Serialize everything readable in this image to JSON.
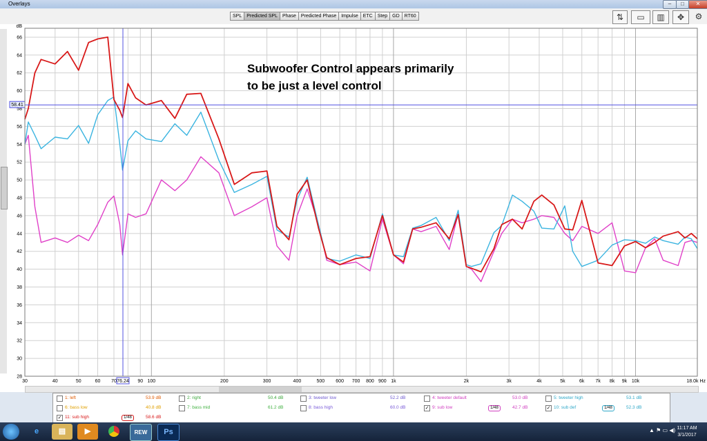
{
  "window": {
    "title": "Overlays"
  },
  "tabs": [
    "SPL",
    "Predicted SPL",
    "Phase",
    "Predicted Phase",
    "Impulse",
    "ETC",
    "Step",
    "GD",
    "RT60"
  ],
  "active_tab": "Predicted SPL",
  "chart_data": {
    "type": "line",
    "title": "",
    "xlabel": "Hz",
    "ylabel": "dB",
    "xscale": "log",
    "xlim": [
      30,
      18000
    ],
    "ylim": [
      28,
      67
    ],
    "y_ticks": [
      28,
      30,
      32,
      34,
      36,
      38,
      40,
      42,
      44,
      46,
      48,
      50,
      52,
      54,
      56,
      58,
      60,
      62,
      64,
      66
    ],
    "x_ticks": [
      "30",
      "40",
      "50",
      "60",
      "70",
      "76.24",
      "90",
      "100",
      "200",
      "300",
      "400",
      "500",
      "600",
      "700",
      "800",
      "900",
      "1k",
      "2k",
      "3k",
      "4k",
      "5k",
      "6k",
      "7k",
      "8k",
      "9k",
      "10k",
      "18.0k Hz"
    ],
    "cursor": {
      "x": 76.24,
      "x_label": "76.24",
      "y": 58.41,
      "y_label": "58.41"
    },
    "annotation": [
      "Subwoofer Control appears primarily",
      "to be just a level control"
    ],
    "series": [
      {
        "name": "9: sub low",
        "color": "#e040c8",
        "x": [
          30,
          31,
          33,
          35,
          40,
          45,
          50,
          55,
          60,
          66,
          70,
          74,
          76,
          80,
          86,
          95,
          110,
          125,
          140,
          160,
          190,
          220,
          260,
          300,
          330,
          370,
          400,
          440,
          490,
          530,
          600,
          700,
          800,
          900,
          1000,
          1100,
          1200,
          1300,
          1500,
          1700,
          1850,
          2000,
          2100,
          2300,
          2600,
          2800,
          3100,
          3400,
          3800,
          4100,
          4600,
          5100,
          5500,
          6000,
          7000,
          8000,
          9000,
          10000,
          11000,
          12000,
          13000,
          15000,
          16000,
          17000,
          18000
        ],
        "y": [
          54,
          55,
          47,
          43,
          43.5,
          43,
          43.8,
          43.2,
          45,
          47.5,
          48.2,
          45,
          41.6,
          46.2,
          45.8,
          46.2,
          50,
          48.8,
          50,
          52.6,
          50.8,
          46,
          47,
          48,
          42.6,
          41,
          46,
          49,
          45,
          41,
          40.5,
          40.8,
          39.8,
          45.6,
          41.6,
          40.6,
          44.5,
          44.2,
          44.8,
          42.2,
          46.2,
          40.3,
          40,
          38.6,
          42,
          44,
          45.6,
          45.2,
          45.6,
          46,
          45.8,
          44,
          43.2,
          44.8,
          44,
          45.2,
          39.8,
          39.6,
          42.4,
          43.4,
          41,
          40.4,
          43,
          43.2,
          43
        ]
      },
      {
        "name": "10: sub def",
        "color": "#3ab4e0",
        "x": [
          30,
          31,
          33,
          35,
          40,
          45,
          50,
          55,
          60,
          66,
          70,
          74,
          76,
          80,
          86,
          95,
          110,
          125,
          140,
          160,
          190,
          220,
          260,
          300,
          330,
          370,
          400,
          440,
          490,
          530,
          600,
          700,
          800,
          900,
          1000,
          1100,
          1200,
          1300,
          1500,
          1700,
          1850,
          2000,
          2100,
          2300,
          2600,
          2800,
          3100,
          3400,
          3800,
          4100,
          4600,
          5100,
          5500,
          6000,
          7000,
          8000,
          9000,
          10000,
          11000,
          12000,
          13000,
          15000,
          16000,
          17000,
          18000
        ],
        "y": [
          54,
          56.5,
          55,
          53.5,
          54.8,
          54.6,
          56.1,
          54.1,
          57.3,
          58.9,
          59.3,
          54,
          51.1,
          54.4,
          55.5,
          54.6,
          54.3,
          56.3,
          55,
          57.6,
          52.2,
          48.6,
          49.5,
          50.4,
          44.4,
          43.6,
          47.8,
          50.3,
          45,
          41.2,
          40.9,
          41.6,
          41.2,
          46.2,
          41.6,
          41.4,
          44.6,
          44.9,
          45.8,
          43.2,
          46.6,
          40.5,
          40.3,
          40.6,
          44.1,
          44.9,
          48.3,
          47.6,
          46.5,
          44.6,
          44.5,
          47.1,
          42,
          40.3,
          41,
          42.7,
          43.3,
          43.2,
          42.9,
          43.6,
          43.2,
          42.8,
          43.6,
          43.4,
          42.3
        ]
      },
      {
        "name": "11: sub high",
        "color": "#d81818",
        "x": [
          30,
          31,
          33,
          35,
          40,
          45,
          50,
          55,
          60,
          66,
          70,
          74,
          76,
          80,
          86,
          95,
          110,
          125,
          140,
          160,
          190,
          220,
          260,
          300,
          330,
          370,
          400,
          440,
          490,
          530,
          600,
          700,
          800,
          900,
          1000,
          1100,
          1200,
          1300,
          1500,
          1700,
          1850,
          2000,
          2100,
          2300,
          2600,
          2800,
          3100,
          3400,
          3800,
          4100,
          4600,
          5100,
          5500,
          6000,
          7000,
          8000,
          9000,
          10000,
          11000,
          12000,
          13000,
          15000,
          16000,
          17000,
          18000
        ],
        "y": [
          56.8,
          58,
          62,
          63.5,
          63,
          64.4,
          62.3,
          65.4,
          65.8,
          66,
          59,
          57.8,
          57,
          60.8,
          59.2,
          58.4,
          58.9,
          56.9,
          59.6,
          59.7,
          54.6,
          49.5,
          50.8,
          51,
          44.8,
          43.3,
          48.4,
          50,
          44.6,
          41.3,
          40.5,
          41.2,
          41.4,
          46,
          41.6,
          40.8,
          44.5,
          44.7,
          45.2,
          43.4,
          46.1,
          40.3,
          40.1,
          39.7,
          42.3,
          45,
          45.6,
          44.5,
          47.6,
          48.3,
          47.2,
          44.5,
          44.4,
          47.7,
          40.7,
          40.4,
          42.6,
          43.1,
          42.4,
          43,
          43.7,
          44.2,
          43.5,
          44,
          43.4
        ]
      }
    ]
  },
  "legend": [
    {
      "label": "1: left",
      "value": "53.9 dB",
      "color": "#e05a00",
      "checked": false,
      "eq": false
    },
    {
      "label": "2: right",
      "value": "50.4 dB",
      "color": "#3aa63a",
      "checked": false,
      "eq": false
    },
    {
      "label": "3: tweeter low",
      "value": "52.2 dB",
      "color": "#6f5bd0",
      "checked": false,
      "eq": false
    },
    {
      "label": "4: tweeter default",
      "value": "53.0 dB",
      "color": "#d040c0",
      "checked": false,
      "eq": false
    },
    {
      "label": "5: tweeter high",
      "value": "53.1 dB",
      "color": "#30a8c8",
      "checked": false,
      "eq": false
    },
    {
      "label": "6: bass low",
      "value": "40.8 dB",
      "color": "#e0a000",
      "checked": false,
      "eq": false
    },
    {
      "label": "7: bass mid",
      "value": "61.2 dB",
      "color": "#40b040",
      "checked": false,
      "eq": false
    },
    {
      "label": "8: bass high",
      "value": "60.0 dB",
      "color": "#7a5bd8",
      "checked": false,
      "eq": false
    },
    {
      "label": "9: sub low",
      "value": "42.7 dB",
      "color": "#d040c0",
      "checked": true,
      "eq": true,
      "eq_label": "1/48"
    },
    {
      "label": "10: sub def",
      "value": "52.3 dB",
      "color": "#30a8c8",
      "checked": true,
      "eq": true,
      "eq_label": "1/48"
    },
    {
      "label": "11: sub high",
      "value": "58.6 dB",
      "color": "#d81818",
      "checked": true,
      "eq": true,
      "eq_label": "1/48"
    }
  ],
  "taskbar": {
    "apps": [
      "IE",
      "Explorer",
      "Media",
      "Chrome",
      "REW",
      "Ps"
    ],
    "time": "11:17 AM",
    "date": "3/1/2017"
  },
  "colors": {
    "grid": "#d0d0d0",
    "cursor": "#5050e0",
    "plot_bg": "#ffffff"
  }
}
